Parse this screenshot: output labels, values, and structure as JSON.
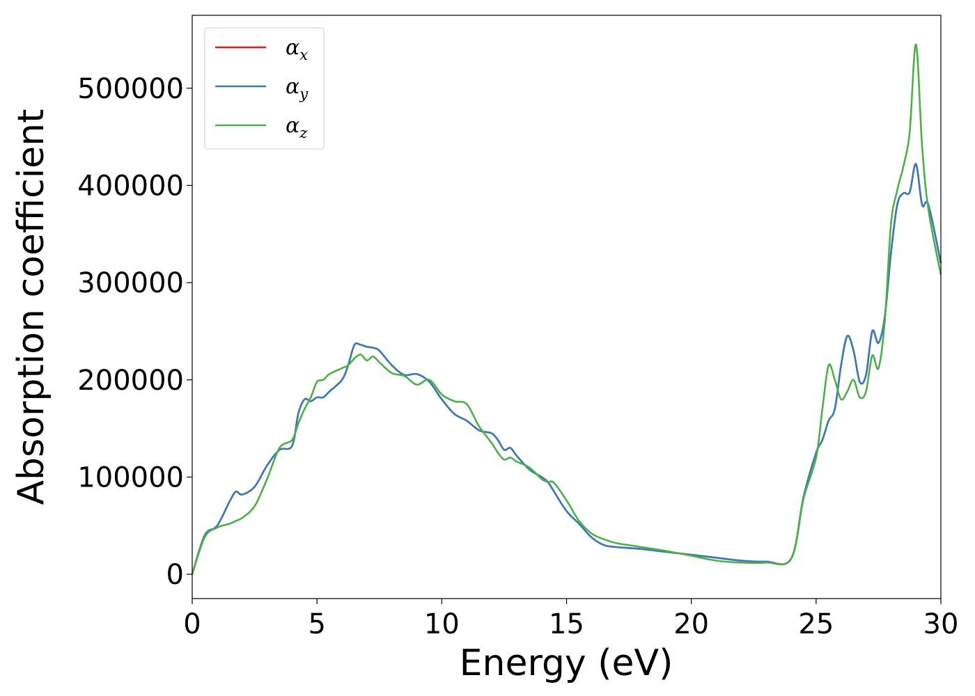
{
  "chart_data": {
    "type": "line",
    "title": "",
    "xlabel": "Energy (eV)",
    "ylabel": "Absorption coefficient",
    "xlim": [
      0,
      30
    ],
    "ylim": [
      -25000,
      575000
    ],
    "xticks": [
      0,
      5,
      10,
      15,
      20,
      25,
      30
    ],
    "yticks": [
      0,
      100000,
      200000,
      300000,
      400000,
      500000
    ],
    "grid": false,
    "legend": "upper left",
    "x": [
      0,
      0.5,
      1,
      1.5,
      1.75,
      2,
      2.5,
      3,
      3.5,
      4,
      4.25,
      4.5,
      4.75,
      5,
      5.25,
      5.5,
      6,
      6.25,
      6.5,
      6.75,
      7,
      7.25,
      7.5,
      8,
      8.5,
      9,
      9.5,
      10,
      10.5,
      11,
      11.5,
      12,
      12.25,
      12.5,
      12.75,
      13,
      13.5,
      14,
      14.25,
      14.5,
      15,
      15.5,
      16,
      16.5,
      17,
      17.5,
      18,
      19,
      20,
      21,
      22,
      23,
      24,
      24.5,
      25,
      25.25,
      25.5,
      25.75,
      26,
      26.25,
      26.5,
      26.75,
      27,
      27.25,
      27.5,
      27.75,
      28,
      28.25,
      28.5,
      28.75,
      29,
      29.25,
      29.5,
      30
    ],
    "series": [
      {
        "name": "α",
        "subscript": "x",
        "color": "#e41a1c",
        "values": [
          0,
          40000,
          50000,
          75000,
          85000,
          82000,
          90000,
          112000,
          128000,
          132000,
          165000,
          180000,
          178000,
          182000,
          182000,
          188000,
          200000,
          215000,
          236000,
          236000,
          234000,
          233000,
          230000,
          215000,
          205000,
          206000,
          198000,
          180000,
          165000,
          158000,
          148000,
          145000,
          138000,
          128000,
          130000,
          122000,
          108000,
          100000,
          95000,
          85000,
          65000,
          52000,
          38000,
          30000,
          28000,
          27000,
          26000,
          23000,
          20000,
          17000,
          14000,
          13000,
          16000,
          80000,
          125000,
          138000,
          158000,
          170000,
          215000,
          245000,
          230000,
          198000,
          205000,
          250000,
          238000,
          265000,
          330000,
          380000,
          392000,
          393000,
          422000,
          380000,
          380000,
          320000
        ]
      },
      {
        "name": "α",
        "subscript": "y",
        "color": "#377eb8",
        "values": [
          0,
          40000,
          50000,
          75000,
          85000,
          82000,
          90000,
          112000,
          128000,
          132000,
          165000,
          180000,
          178000,
          182000,
          182000,
          188000,
          200000,
          215000,
          236000,
          236000,
          234000,
          233000,
          230000,
          215000,
          205000,
          206000,
          198000,
          180000,
          165000,
          158000,
          148000,
          145000,
          138000,
          128000,
          130000,
          122000,
          108000,
          100000,
          95000,
          85000,
          65000,
          52000,
          38000,
          30000,
          28000,
          27000,
          26000,
          23000,
          20000,
          17000,
          14000,
          13000,
          16000,
          80000,
          125000,
          138000,
          158000,
          170000,
          215000,
          245000,
          230000,
          198000,
          205000,
          250000,
          238000,
          265000,
          330000,
          380000,
          392000,
          393000,
          422000,
          380000,
          380000,
          320000
        ]
      },
      {
        "name": "α",
        "subscript": "z",
        "color": "#4daf4a",
        "values": [
          0,
          38000,
          48000,
          52000,
          55000,
          58000,
          70000,
          98000,
          130000,
          138000,
          155000,
          170000,
          182000,
          198000,
          200000,
          206000,
          212000,
          215000,
          222000,
          226000,
          220000,
          224000,
          218000,
          207000,
          204000,
          195000,
          200000,
          185000,
          178000,
          175000,
          152000,
          135000,
          125000,
          118000,
          120000,
          116000,
          110000,
          98000,
          95000,
          94000,
          76000,
          55000,
          42000,
          36000,
          32000,
          30000,
          28000,
          24000,
          19000,
          14000,
          12000,
          12000,
          16000,
          78000,
          120000,
          170000,
          215000,
          200000,
          180000,
          188000,
          200000,
          182000,
          188000,
          225000,
          212000,
          260000,
          360000,
          395000,
          420000,
          455000,
          545000,
          440000,
          375000,
          308000
        ]
      }
    ]
  }
}
